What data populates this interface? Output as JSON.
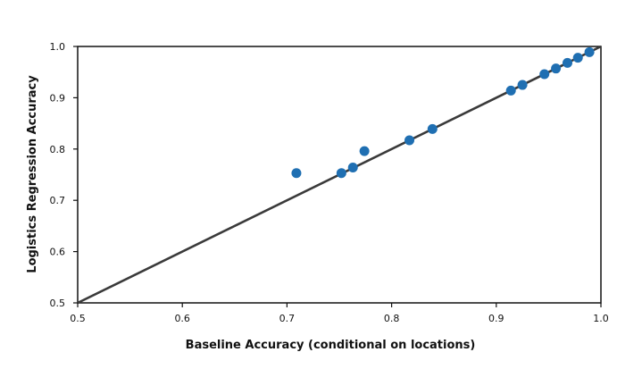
{
  "chart_data": {
    "type": "scatter",
    "xlabel": "Baseline Accuracy (conditional on locations)",
    "ylabel": "Logistics Regression Accuracy",
    "xlim": [
      0.5,
      1.0
    ],
    "ylim": [
      0.5,
      1.0
    ],
    "x_ticks": [
      "0.5",
      "0.6",
      "0.7",
      "0.8",
      "0.9",
      "1.0"
    ],
    "y_ticks": [
      "0.5",
      "0.6",
      "0.7",
      "0.8",
      "0.9",
      "1.0"
    ],
    "grid": false,
    "reference_line": {
      "from": [
        0.5,
        0.5
      ],
      "to": [
        1.0,
        1.0
      ],
      "color": "#3a3a3a"
    },
    "point_color": "#1f6fb2",
    "points": [
      {
        "x": 0.709,
        "y": 0.753
      },
      {
        "x": 0.752,
        "y": 0.753
      },
      {
        "x": 0.763,
        "y": 0.764
      },
      {
        "x": 0.774,
        "y": 0.796
      },
      {
        "x": 0.817,
        "y": 0.817
      },
      {
        "x": 0.839,
        "y": 0.839
      },
      {
        "x": 0.914,
        "y": 0.914
      },
      {
        "x": 0.925,
        "y": 0.925
      },
      {
        "x": 0.946,
        "y": 0.946
      },
      {
        "x": 0.957,
        "y": 0.957
      },
      {
        "x": 0.968,
        "y": 0.968
      },
      {
        "x": 0.978,
        "y": 0.978
      },
      {
        "x": 0.989,
        "y": 0.989
      }
    ]
  }
}
